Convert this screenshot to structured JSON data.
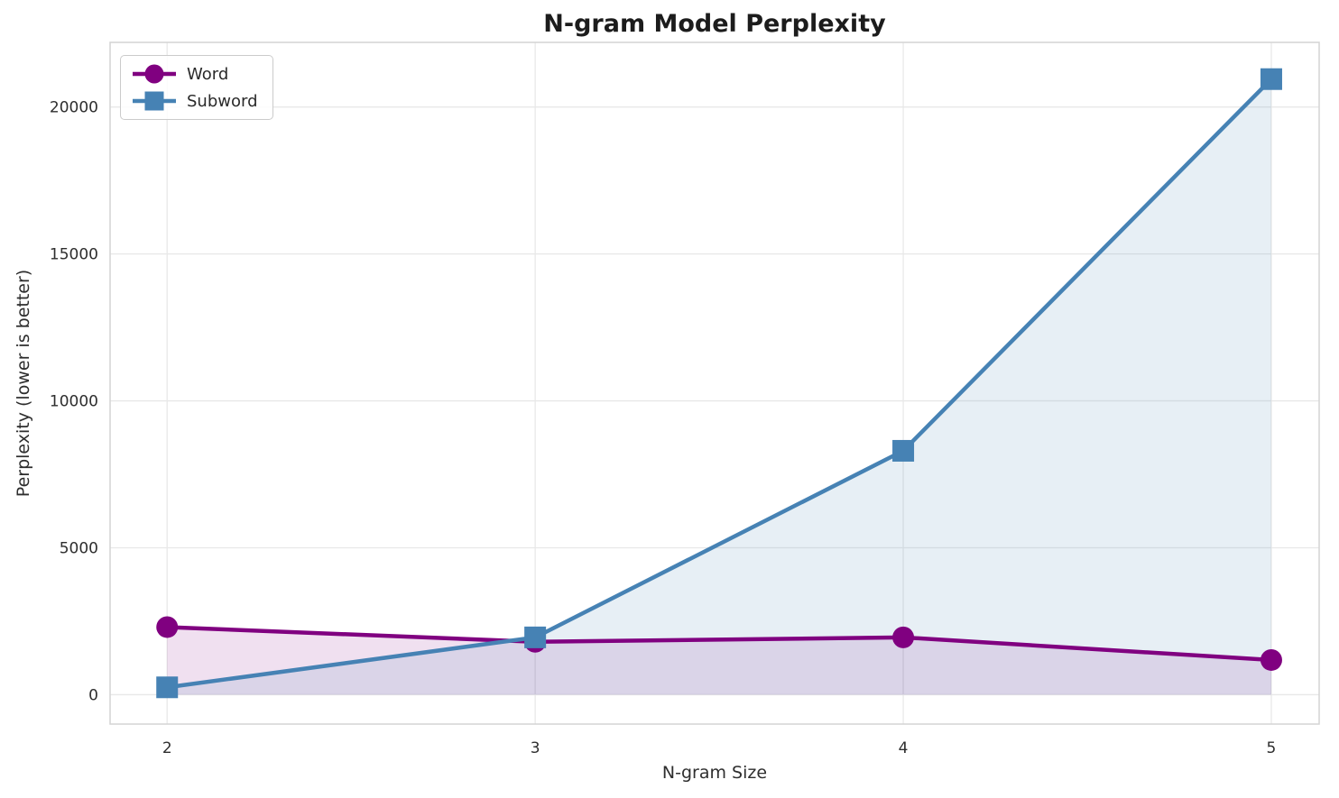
{
  "chart_data": {
    "type": "line",
    "title": "N-gram Model Perplexity",
    "xlabel": "N-gram Size",
    "ylabel": "Perplexity (lower is better)",
    "x": [
      2,
      3,
      4,
      5
    ],
    "series": [
      {
        "name": "Word",
        "marker": "circle",
        "color": "#800080",
        "fill": "rgba(128,0,128,0.12)",
        "values": [
          2300,
          1800,
          1950,
          1180
        ]
      },
      {
        "name": "Subword",
        "marker": "square",
        "color": "#4682B4",
        "fill": "rgba(70,130,180,0.13)",
        "values": [
          250,
          1950,
          8300,
          20950
        ]
      }
    ],
    "xticks": [
      2,
      3,
      4,
      5
    ],
    "yticks": [
      0,
      5000,
      10000,
      15000,
      20000
    ],
    "xlim": [
      1.845,
      5.13
    ],
    "ylim": [
      -1000,
      22200
    ],
    "grid": true,
    "fill_to_zero": true,
    "legend_position": "upper left",
    "colors": {
      "grid": "#e8e8e8",
      "spine": "#d4d4d4",
      "text": "#2e2e2e",
      "title": "#1c1c1c",
      "background": "#ffffff"
    }
  }
}
